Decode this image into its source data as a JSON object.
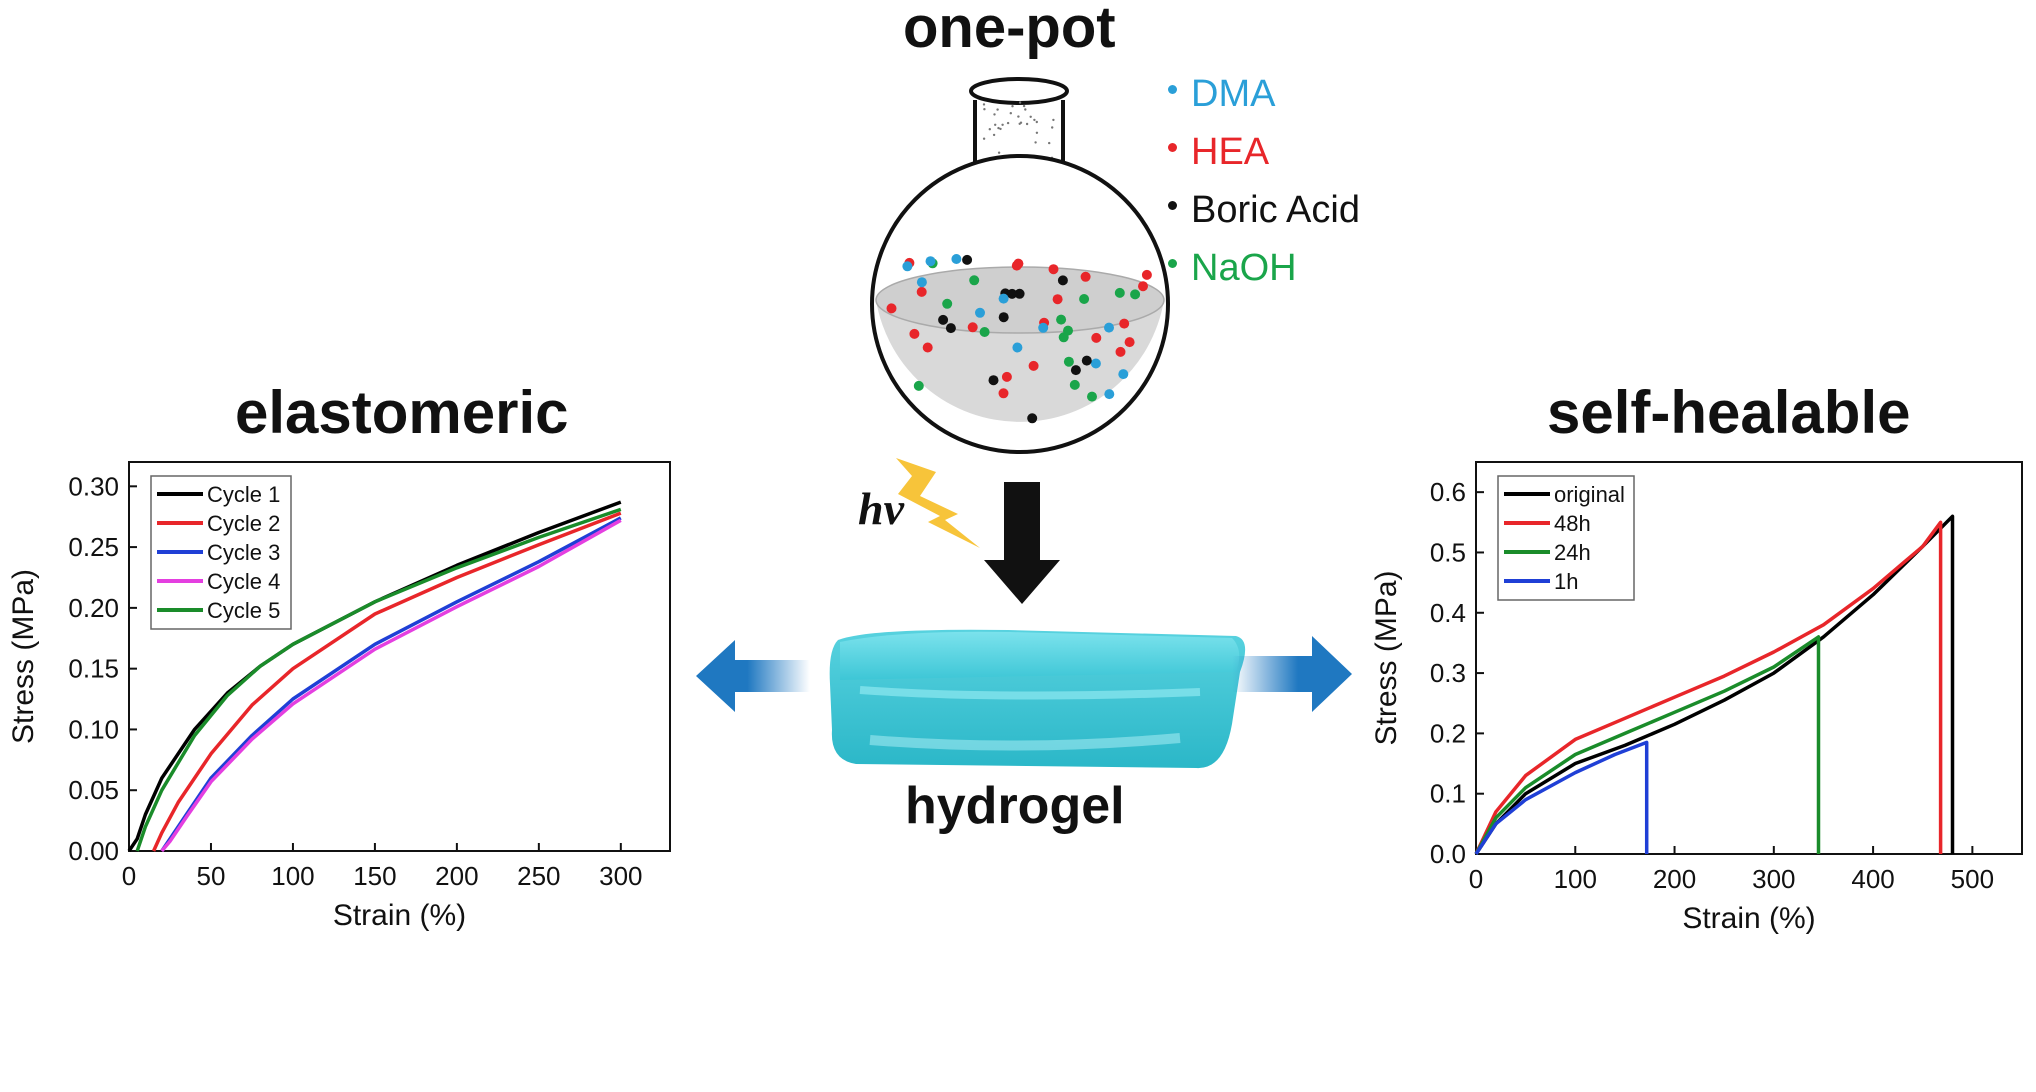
{
  "headings": {
    "one_pot": "one-pot",
    "elastomeric": "elastomeric",
    "self_healable": "self-healable",
    "hydrogel": "hydrogel",
    "hv": "hv"
  },
  "reagents": [
    {
      "label": "DMA",
      "color": "#2a9fd8"
    },
    {
      "label": "HEA",
      "color": "#e8262a"
    },
    {
      "label": "Boric Acid",
      "color": "#111111"
    },
    {
      "label": "NaOH",
      "color": "#1aa54a"
    }
  ],
  "colors": {
    "arrow_blue": "#1f78c1",
    "hydrogel": "#5fd3e0",
    "bolt": "#f7c43a"
  },
  "chart_data": [
    {
      "type": "line",
      "xlabel": "Strain (%)",
      "ylabel": "Stress (MPa)",
      "xlim": [
        0,
        330
      ],
      "ylim": [
        0,
        0.32
      ],
      "xticks": [
        0,
        50,
        100,
        150,
        200,
        250,
        300
      ],
      "yticks": [
        "0.00",
        "0.05",
        "0.10",
        "0.15",
        "0.20",
        "0.25",
        "0.30"
      ],
      "legend_position": "top-left",
      "series": [
        {
          "name": "Cycle 1",
          "color": "#000000",
          "x": [
            0,
            5,
            10,
            20,
            40,
            60,
            80,
            100,
            150,
            200,
            250,
            300
          ],
          "y": [
            0,
            0.01,
            0.03,
            0.06,
            0.1,
            0.13,
            0.152,
            0.17,
            0.205,
            0.235,
            0.262,
            0.287
          ]
        },
        {
          "name": "Cycle 2",
          "color": "#e8262a",
          "x": [
            15,
            20,
            30,
            50,
            75,
            100,
            150,
            200,
            250,
            300
          ],
          "y": [
            0,
            0.015,
            0.04,
            0.08,
            0.12,
            0.15,
            0.195,
            0.225,
            0.252,
            0.278
          ]
        },
        {
          "name": "Cycle 3",
          "color": "#1f3fd6",
          "x": [
            20,
            25,
            35,
            50,
            75,
            100,
            150,
            200,
            250,
            300
          ],
          "y": [
            0,
            0.01,
            0.03,
            0.06,
            0.095,
            0.125,
            0.17,
            0.205,
            0.238,
            0.274
          ]
        },
        {
          "name": "Cycle 4",
          "color": "#e43fe0",
          "x": [
            20,
            25,
            35,
            50,
            75,
            100,
            150,
            200,
            250,
            300
          ],
          "y": [
            0,
            0.008,
            0.028,
            0.057,
            0.092,
            0.121,
            0.166,
            0.201,
            0.234,
            0.272
          ]
        },
        {
          "name": "Cycle 5",
          "color": "#1a8c2a",
          "x": [
            5,
            10,
            20,
            40,
            60,
            80,
            100,
            150,
            200,
            250,
            300
          ],
          "y": [
            0,
            0.02,
            0.05,
            0.095,
            0.128,
            0.152,
            0.17,
            0.205,
            0.233,
            0.258,
            0.281
          ]
        }
      ]
    },
    {
      "type": "line",
      "xlabel": "Strain (%)",
      "ylabel": "Stress (MPa)",
      "xlim": [
        0,
        550
      ],
      "ylim": [
        0,
        0.65
      ],
      "xticks": [
        0,
        100,
        200,
        300,
        400,
        500
      ],
      "yticks": [
        "0.0",
        "0.1",
        "0.2",
        "0.3",
        "0.4",
        "0.5",
        "0.6"
      ],
      "legend_position": "top-left",
      "series": [
        {
          "name": "original",
          "color": "#000000",
          "x": [
            0,
            20,
            50,
            100,
            150,
            200,
            250,
            300,
            350,
            400,
            450,
            480,
            480
          ],
          "y": [
            0,
            0.05,
            0.1,
            0.15,
            0.18,
            0.215,
            0.255,
            0.3,
            0.36,
            0.43,
            0.51,
            0.56,
            0
          ]
        },
        {
          "name": "48h",
          "color": "#e8262a",
          "x": [
            0,
            20,
            50,
            100,
            150,
            200,
            250,
            300,
            350,
            400,
            450,
            468,
            468
          ],
          "y": [
            0,
            0.07,
            0.13,
            0.19,
            0.225,
            0.26,
            0.295,
            0.335,
            0.38,
            0.44,
            0.51,
            0.55,
            0
          ]
        },
        {
          "name": "24h",
          "color": "#1a8c2a",
          "x": [
            0,
            20,
            50,
            100,
            150,
            200,
            250,
            300,
            345,
            345
          ],
          "y": [
            0,
            0.06,
            0.11,
            0.165,
            0.2,
            0.235,
            0.27,
            0.31,
            0.36,
            0
          ]
        },
        {
          "name": "1h",
          "color": "#1f3fd6",
          "x": [
            0,
            20,
            50,
            100,
            140,
            172,
            172
          ],
          "y": [
            0,
            0.05,
            0.09,
            0.135,
            0.165,
            0.185,
            0
          ]
        }
      ]
    }
  ]
}
